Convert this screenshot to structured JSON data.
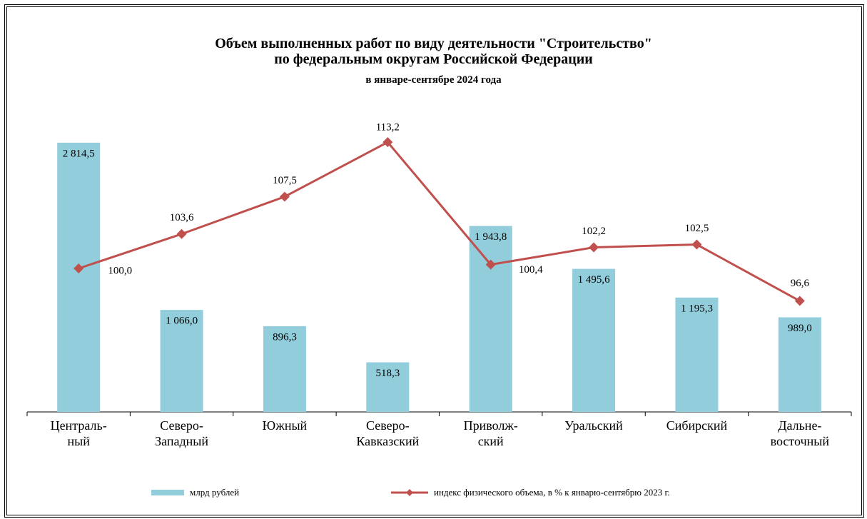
{
  "chart_data": {
    "type": "bar-line",
    "title": "Объем выполненных  работ  по виду деятельности \"Строительство\"\nпо федеральным  округам  Российской  Федерации",
    "subtitle": "в январе-сентябре 2024 года",
    "categories": [
      "Централь-\nный",
      "Северо-\nЗападный",
      "Южный",
      "Северо-\nКавказский",
      "Приволж-\nский",
      "Уральский",
      "Сибирский",
      "Дальне-\nвосточный"
    ],
    "ylim": [
      0,
      3000
    ],
    "y2lim": [
      85,
      115
    ],
    "series": [
      {
        "name": "млрд рублей",
        "type": "bar",
        "color": "#92cddc",
        "values": [
          2814.5,
          1066.0,
          896.3,
          518.3,
          1943.8,
          1495.6,
          1195.3,
          989.0
        ],
        "value_labels": [
          "2 814,5",
          "1 066,0",
          "896,3",
          "518,3",
          "1 943,8",
          "1 495,6",
          "1 195,3",
          "989,0"
        ]
      },
      {
        "name": "индекс физического объема, в % к январю-сентябрю 2023 г.",
        "type": "line",
        "axis": "y2",
        "color": "#c0504d",
        "values": [
          100.0,
          103.6,
          107.5,
          113.2,
          100.4,
          102.2,
          102.5,
          96.6
        ],
        "value_labels": [
          "100,0",
          "103,6",
          "107,5",
          "113,2",
          "100,4",
          "102,2",
          "102,5",
          "96,6"
        ]
      }
    ]
  }
}
